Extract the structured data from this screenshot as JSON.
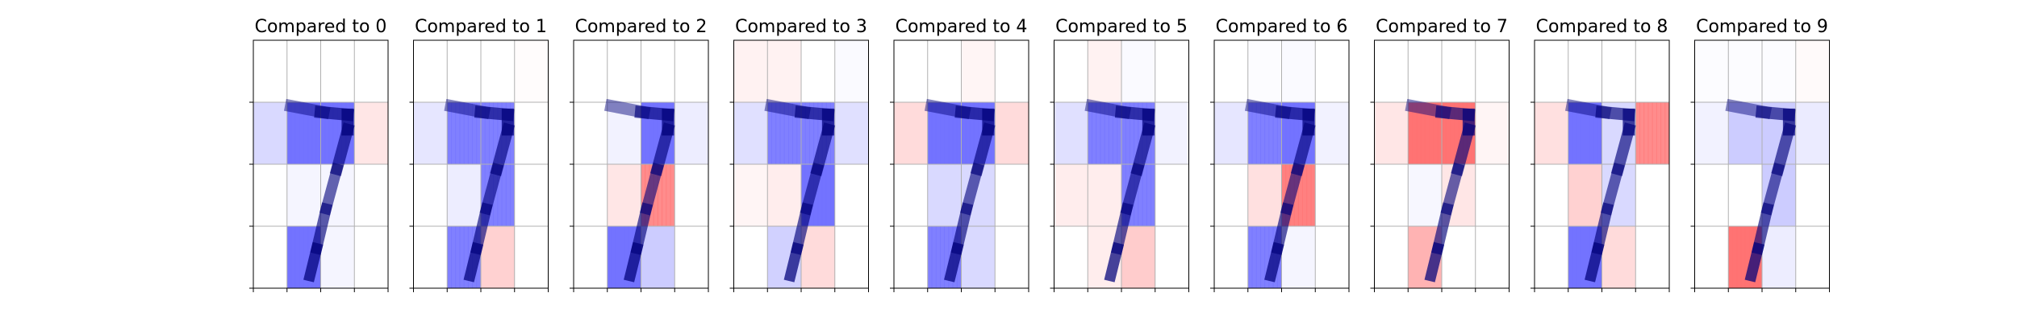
{
  "chart_data": {
    "type": "heatmap",
    "description_grid": "Each panel overlays a grayscale digit '7' on a 4x4 grid of relevance cells (blue = supports, red = opposes). Grid values range -1 (strong blue) to +1 (strong red).",
    "rows": 4,
    "cols": 4,
    "colors": {
      "positive": "#ff0000",
      "negative": "#0000ff",
      "neutral": "#ffffff",
      "gridline": "#b0b0b0",
      "digit": "#000000"
    },
    "panels": [
      {
        "title": "Compared to 0",
        "cells": [
          [
            0,
            0,
            0,
            0
          ],
          [
            -0.15,
            -0.55,
            -0.55,
            0.1
          ],
          [
            0,
            -0.04,
            -0.04,
            0
          ],
          [
            0,
            -0.55,
            -0.04,
            0
          ]
        ]
      },
      {
        "title": "Compared to 1",
        "cells": [
          [
            0,
            0,
            0,
            0.01
          ],
          [
            -0.1,
            -0.5,
            -0.5,
            0
          ],
          [
            0,
            -0.07,
            -0.5,
            0
          ],
          [
            0,
            -0.5,
            0.18,
            0
          ]
        ]
      },
      {
        "title": "Compared to 2",
        "cells": [
          [
            0,
            0,
            0,
            0
          ],
          [
            0,
            -0.05,
            -0.55,
            -0.07
          ],
          [
            0,
            0.1,
            0.45,
            0
          ],
          [
            0,
            -0.55,
            -0.2,
            0
          ]
        ]
      },
      {
        "title": "Compared to 3",
        "cells": [
          [
            0.05,
            0.05,
            0,
            -0.02
          ],
          [
            -0.12,
            -0.5,
            -0.5,
            -0.12
          ],
          [
            0.04,
            0.07,
            -0.55,
            0
          ],
          [
            0,
            -0.18,
            0.14,
            0
          ]
        ]
      },
      {
        "title": "Compared to 4",
        "cells": [
          [
            0,
            0,
            0.04,
            0
          ],
          [
            0.14,
            -0.55,
            -0.55,
            0.14
          ],
          [
            0,
            -0.15,
            -0.15,
            0
          ],
          [
            0,
            -0.5,
            -0.15,
            0
          ]
        ]
      },
      {
        "title": "Compared to 5",
        "cells": [
          [
            0,
            0.05,
            -0.02,
            0
          ],
          [
            -0.12,
            -0.5,
            -0.5,
            -0.05
          ],
          [
            0.07,
            0.07,
            -0.5,
            0
          ],
          [
            0,
            0.07,
            0.2,
            0
          ]
        ]
      },
      {
        "title": "Compared to 6",
        "cells": [
          [
            0,
            -0.01,
            -0.02,
            0
          ],
          [
            -0.1,
            -0.5,
            -0.55,
            -0.05
          ],
          [
            0,
            0.12,
            0.5,
            0
          ],
          [
            0,
            -0.5,
            -0.04,
            0
          ]
        ]
      },
      {
        "title": "Compared to 7",
        "cells": [
          [
            0,
            0,
            0,
            0
          ],
          [
            0.1,
            0.55,
            0.55,
            0.04
          ],
          [
            0,
            -0.03,
            0.1,
            0
          ],
          [
            0,
            0.3,
            0,
            0
          ]
        ]
      },
      {
        "title": "Compared to 8",
        "cells": [
          [
            0,
            0,
            0,
            0
          ],
          [
            0.12,
            -0.55,
            -0.15,
            0.45
          ],
          [
            0,
            0.18,
            -0.15,
            0
          ],
          [
            0,
            -0.55,
            0.14,
            0
          ]
        ]
      },
      {
        "title": "Compared to 9",
        "cells": [
          [
            -0.01,
            -0.01,
            -0.01,
            0.02
          ],
          [
            -0.05,
            -0.2,
            -0.2,
            -0.08
          ],
          [
            0,
            0,
            -0.2,
            0
          ],
          [
            0,
            0.55,
            -0.07,
            0
          ]
        ]
      }
    ],
    "digit": [
      [
        null,
        null,
        null,
        null,
        null,
        null,
        null,
        null,
        null,
        null,
        null,
        null,
        null,
        null,
        null,
        null,
        null,
        null,
        null,
        null,
        null,
        null,
        null,
        null,
        null,
        null,
        null,
        null
      ],
      "strokes"
    ],
    "grid": true,
    "xticks_labels": [],
    "yticks_labels": []
  }
}
